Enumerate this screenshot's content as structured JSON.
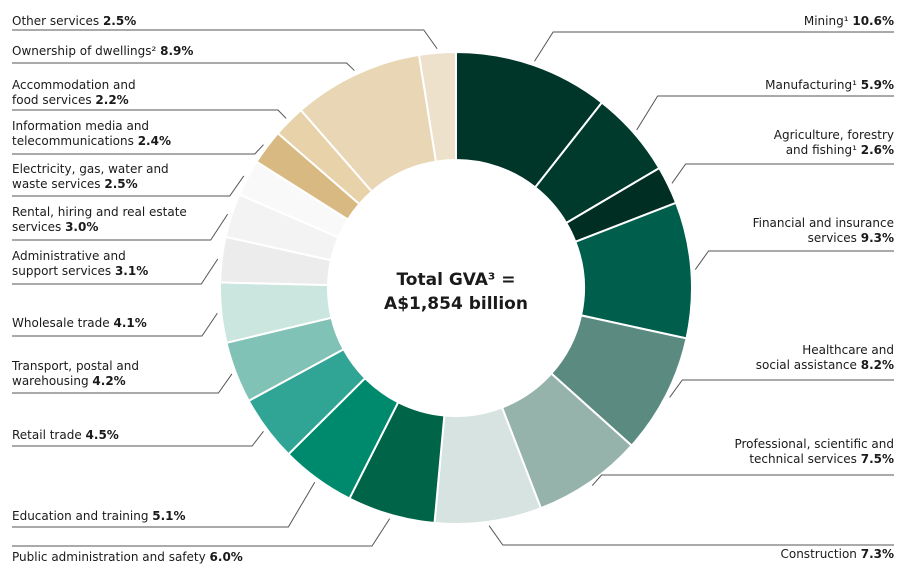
{
  "chart_data": {
    "type": "donut",
    "center_text": [
      "Total GVA³ =",
      "A$1,854 billion"
    ],
    "categories": [
      "Mining¹",
      "Manufacturing¹",
      "Agriculture, forestry\nand fishing¹",
      "Financial and insurance\nservices",
      "Healthcare and\nsocial assistance",
      "Professional, scientific and\ntechnical services",
      "Construction",
      "Public administration and safety",
      "Education and training",
      "Retail trade",
      "Transport, postal and\nwarehousing",
      "Wholesale trade",
      "Administrative and\nsupport services",
      "Rental, hiring and real estate\nservices",
      "Electricity, gas, water and\nwaste services",
      "Information media and\ntelecommunications",
      "Accommodation and\nfood services",
      "Ownership of dwellings²",
      "Other services"
    ],
    "values": [
      10.6,
      5.9,
      2.6,
      9.3,
      8.2,
      7.5,
      7.3,
      6.0,
      5.1,
      4.5,
      4.2,
      4.1,
      3.1,
      3.0,
      2.5,
      2.4,
      2.2,
      8.9,
      2.5
    ],
    "value_labels": [
      "10.6%",
      "5.9%",
      "2.6%",
      "9.3%",
      "8.2%",
      "7.5%",
      "7.3%",
      "6.0%",
      "5.1%",
      "4.5%",
      "4.2%",
      "4.1%",
      "3.1%",
      "3.0%",
      "2.5%",
      "2.4%",
      "2.2%",
      "8.9%",
      "2.5%"
    ],
    "colors": [
      "#00352a",
      "#003a2c",
      "#002e23",
      "#005e4d",
      "#5a8a80",
      "#95b3aa",
      "#d7e3e0",
      "#006548",
      "#008a6d",
      "#30a595",
      "#80c2b5",
      "#cbe6df",
      "#ececec",
      "#f3f3f3",
      "#f9f9f9",
      "#d9b982",
      "#e8d2aa",
      "#e8d6b5",
      "#ede1cc"
    ]
  }
}
